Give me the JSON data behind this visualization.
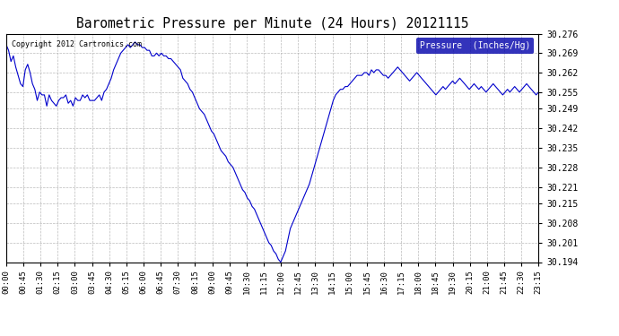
{
  "title": "Barometric Pressure per Minute (24 Hours) 20121115",
  "copyright": "Copyright 2012 Cartronics.com",
  "legend_label": "Pressure  (Inches/Hg)",
  "ylim": [
    30.194,
    30.276
  ],
  "yticks": [
    30.194,
    30.201,
    30.208,
    30.215,
    30.221,
    30.228,
    30.235,
    30.242,
    30.249,
    30.255,
    30.262,
    30.269,
    30.276
  ],
  "line_color": "#0000cc",
  "bg_color": "#ffffff",
  "grid_color": "#aaaaaa",
  "title_color": "#000000",
  "copyright_color": "#000000",
  "legend_bg": "#0000aa",
  "legend_text_color": "#ffffff",
  "x_labels": [
    "00:00",
    "00:45",
    "01:30",
    "02:15",
    "03:00",
    "03:45",
    "04:30",
    "05:15",
    "06:00",
    "06:45",
    "07:30",
    "08:15",
    "09:00",
    "09:45",
    "10:30",
    "11:15",
    "12:00",
    "12:45",
    "13:30",
    "14:15",
    "15:00",
    "15:45",
    "16:30",
    "17:15",
    "18:00",
    "18:45",
    "19:30",
    "20:15",
    "21:00",
    "21:45",
    "22:30",
    "23:15"
  ],
  "pressure_data": [
    30.272,
    30.27,
    30.266,
    30.268,
    30.264,
    30.261,
    30.258,
    30.257,
    30.263,
    30.265,
    30.262,
    30.258,
    30.256,
    30.252,
    30.255,
    30.254,
    30.254,
    30.25,
    30.254,
    30.252,
    30.251,
    30.25,
    30.252,
    30.253,
    30.253,
    30.254,
    30.251,
    30.252,
    30.25,
    30.253,
    30.252,
    30.252,
    30.254,
    30.253,
    30.254,
    30.252,
    30.252,
    30.252,
    30.253,
    30.254,
    30.252,
    30.255,
    30.256,
    30.258,
    30.26,
    30.263,
    30.265,
    30.267,
    30.269,
    30.27,
    30.271,
    30.272,
    30.271,
    30.272,
    30.273,
    30.272,
    30.272,
    30.271,
    30.271,
    30.27,
    30.27,
    30.268,
    30.268,
    30.269,
    30.268,
    30.269,
    30.268,
    30.268,
    30.267,
    30.267,
    30.266,
    30.265,
    30.264,
    30.263,
    30.26,
    30.259,
    30.258,
    30.256,
    30.255,
    30.253,
    30.251,
    30.249,
    30.248,
    30.247,
    30.245,
    30.243,
    30.241,
    30.24,
    30.238,
    30.236,
    30.234,
    30.233,
    30.232,
    30.23,
    30.229,
    30.228,
    30.226,
    30.224,
    30.222,
    30.22,
    30.219,
    30.217,
    30.216,
    30.214,
    30.213,
    30.211,
    30.209,
    30.207,
    30.205,
    30.203,
    30.201,
    30.2,
    30.198,
    30.197,
    30.195,
    30.194,
    30.196,
    30.198,
    30.202,
    30.206,
    30.208,
    30.21,
    30.212,
    30.214,
    30.216,
    30.218,
    30.22,
    30.222,
    30.225,
    30.228,
    30.231,
    30.234,
    30.237,
    30.24,
    30.243,
    30.246,
    30.249,
    30.252,
    30.254,
    30.255,
    30.256,
    30.256,
    30.257,
    30.257,
    30.258,
    30.259,
    30.26,
    30.261,
    30.261,
    30.261,
    30.262,
    30.262,
    30.261,
    30.263,
    30.262,
    30.263,
    30.263,
    30.262,
    30.261,
    30.261,
    30.26,
    30.261,
    30.262,
    30.263,
    30.264,
    30.263,
    30.262,
    30.261,
    30.26,
    30.259,
    30.26,
    30.261,
    30.262,
    30.261,
    30.26,
    30.259,
    30.258,
    30.257,
    30.256,
    30.255,
    30.254,
    30.255,
    30.256,
    30.257,
    30.256,
    30.257,
    30.258,
    30.259,
    30.258,
    30.259,
    30.26,
    30.259,
    30.258,
    30.257,
    30.256,
    30.257,
    30.258,
    30.257,
    30.256,
    30.257,
    30.256,
    30.255,
    30.256,
    30.257,
    30.258,
    30.257,
    30.256,
    30.255,
    30.254,
    30.255,
    30.256,
    30.255,
    30.256,
    30.257,
    30.256,
    30.255,
    30.256,
    30.257,
    30.258,
    30.257,
    30.256,
    30.255,
    30.254,
    30.255
  ]
}
